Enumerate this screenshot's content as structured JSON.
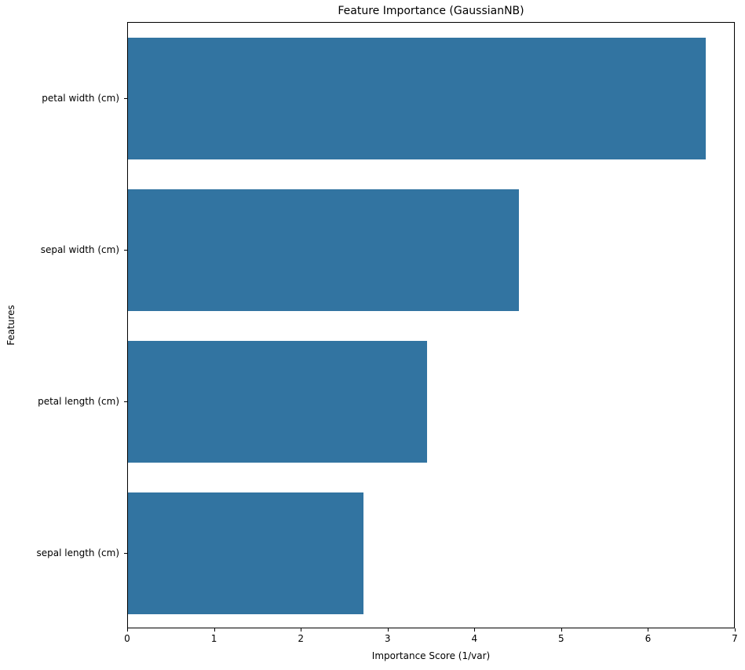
{
  "chart_data": {
    "type": "bar",
    "orientation": "horizontal",
    "title": "Feature Importance (GaussianNB)",
    "xlabel": "Importance Score (1/var)",
    "ylabel": "Features",
    "categories": [
      "petal width (cm)",
      "sepal width (cm)",
      "petal length (cm)",
      "sepal length (cm)"
    ],
    "values": [
      6.66,
      4.5,
      3.45,
      2.71
    ],
    "xlim": [
      0,
      7
    ],
    "xticks": [
      0,
      1,
      2,
      3,
      4,
      5,
      6,
      7
    ],
    "bar_color": "#3274a1",
    "grid": false,
    "legend": null
  }
}
